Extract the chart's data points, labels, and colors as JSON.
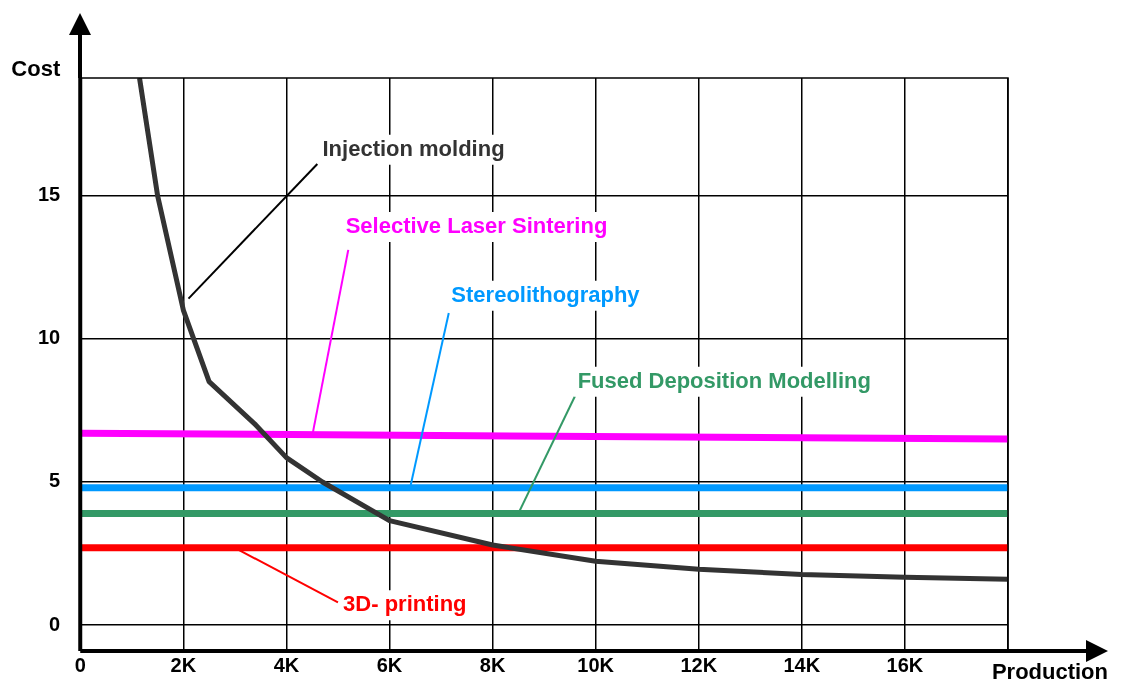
{
  "chart_data": {
    "type": "line",
    "xlabel": "Production",
    "ylabel": "Cost",
    "xlim": [
      0,
      18000
    ],
    "ylim": [
      -0.9,
      19.1
    ],
    "xticks": [
      0,
      {
        "value": 2000,
        "label": "2K"
      },
      {
        "value": 4000,
        "label": "4K"
      },
      {
        "value": 6000,
        "label": "6K"
      },
      {
        "value": 8000,
        "label": "8K"
      },
      {
        "value": 10000,
        "label": "10K"
      },
      {
        "value": 12000,
        "label": "12K"
      },
      {
        "value": 14000,
        "label": "14K"
      },
      {
        "value": 16000,
        "label": "16K"
      },
      {
        "value": 18000,
        "label": null
      }
    ],
    "yticks": [
      0,
      5,
      10,
      15
    ],
    "grid": true,
    "legend": false,
    "marker": "none",
    "line_style": "solid",
    "series": [
      {
        "name": "Injection molding",
        "color": "#333333",
        "x": [
          1150,
          1500,
          2000,
          2500,
          3400,
          4000,
          4700,
          6000,
          8000,
          10000,
          12000,
          14000,
          16000,
          18000
        ],
        "values": [
          19.1,
          15.0,
          11.0,
          8.5,
          7.0,
          5.85,
          5.0,
          3.65,
          2.8,
          2.23,
          1.95,
          1.77,
          1.67,
          1.6
        ]
      },
      {
        "name": "Selective Laser Sintering",
        "color": "#ff00ff",
        "x": [
          0,
          18000
        ],
        "values": [
          6.7,
          6.5
        ]
      },
      {
        "name": "Stereolithography",
        "color": "#0099ff",
        "x": [
          0,
          18000
        ],
        "values": [
          4.8,
          4.8
        ]
      },
      {
        "name": "Fused Deposition Modelling",
        "color": "#339966",
        "x": [
          0,
          18000
        ],
        "values": [
          3.9,
          3.9
        ]
      },
      {
        "name": "3D- printing",
        "color": "#ff0000",
        "x": [
          0,
          18000
        ],
        "values": [
          2.7,
          2.7
        ]
      }
    ]
  }
}
